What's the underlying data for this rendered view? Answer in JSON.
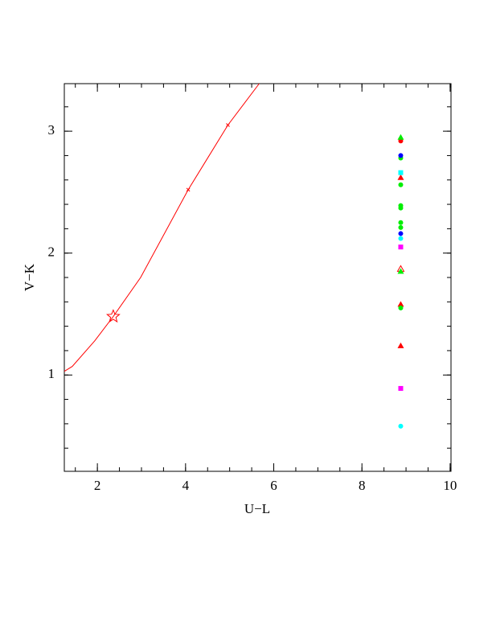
{
  "chart_data": {
    "type": "scatter",
    "x_label": "U−L",
    "y_label": "V−K",
    "xlim": [
      1.25,
      10.02
    ],
    "ylim": [
      0.21,
      3.39
    ],
    "xticks": [
      2,
      4,
      6,
      8,
      10
    ],
    "yticks": [
      1,
      2,
      3
    ],
    "xminor_step": 0.5,
    "yminor_step": 0.2,
    "series": [
      {
        "style": "line",
        "color": "#ff0000",
        "x": [
          1.25,
          1.43,
          1.94,
          2.36,
          2.98,
          4.06,
          4.96,
          5.67
        ],
        "values": [
          1.03,
          1.07,
          1.28,
          1.48,
          1.8,
          2.52,
          3.05,
          3.39
        ]
      },
      {
        "marker": "cross",
        "color": "#ff0000",
        "x": [
          4.06,
          4.96
        ],
        "values": [
          2.52,
          3.05
        ]
      },
      {
        "marker": "star",
        "color": "#ff0000",
        "x": [
          2.36
        ],
        "values": [
          1.48
        ]
      },
      {
        "marker": "circle",
        "color": "#ff0000",
        "x": [
          8.88
        ],
        "values": [
          2.92
        ]
      },
      {
        "marker": "triangle",
        "color": "#ff0000",
        "x": [
          8.88,
          8.88,
          8.88
        ],
        "values": [
          2.62,
          1.58,
          1.24
        ]
      },
      {
        "marker": "open-triangle",
        "color": "#ff0000",
        "x": [
          8.88
        ],
        "values": [
          1.87
        ]
      },
      {
        "marker": "circle",
        "color": "#00ee00",
        "x": [
          8.88,
          8.88,
          8.88,
          8.88,
          8.88,
          8.88,
          8.88
        ],
        "values": [
          2.78,
          2.56,
          2.39,
          2.37,
          2.25,
          2.21,
          1.55
        ]
      },
      {
        "marker": "triangle",
        "color": "#00ee00",
        "x": [
          8.88,
          8.88
        ],
        "values": [
          2.95,
          1.85
        ]
      },
      {
        "marker": "circle",
        "color": "#0000ff",
        "x": [
          8.88,
          8.88
        ],
        "values": [
          2.8,
          2.16
        ]
      },
      {
        "marker": "circle",
        "color": "#00ffff",
        "x": [
          8.88,
          8.88
        ],
        "values": [
          2.12,
          0.58
        ]
      },
      {
        "marker": "square",
        "color": "#00ffff",
        "x": [
          8.88
        ],
        "values": [
          2.66
        ]
      },
      {
        "marker": "square",
        "color": "#ff00ff",
        "x": [
          8.88,
          8.88
        ],
        "values": [
          2.05,
          0.89
        ]
      }
    ]
  }
}
